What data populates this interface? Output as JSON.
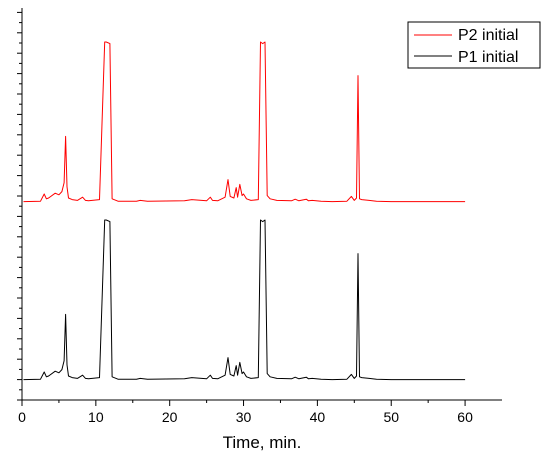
{
  "chart_data": {
    "type": "line",
    "xlabel": "Time, min.",
    "ylabel": "",
    "xlim": [
      0,
      65
    ],
    "x_ticks": [
      0,
      10,
      20,
      30,
      40,
      50,
      60
    ],
    "x_tick_labels": [
      "0",
      "10",
      "20",
      "30",
      "40",
      "50",
      "60"
    ],
    "y_tick_labels_shown": false,
    "grid": false,
    "legend_position": "top-right",
    "legend": [
      "P2 initial",
      "P1 initial"
    ],
    "series": [
      {
        "name": "P2 initial",
        "color": "#ff0000",
        "x": [
          0.2,
          2.5,
          3.0,
          3.3,
          3.6,
          4.5,
          5.0,
          5.4,
          5.7,
          5.9,
          6.1,
          6.3,
          6.8,
          7.5,
          8.2,
          8.6,
          9.0,
          10.5,
          11.2,
          11.4,
          11.9,
          12.2,
          13.0,
          15.5,
          16.0,
          17.0,
          22.0,
          23.0,
          25.0,
          25.5,
          25.8,
          26.5,
          27.5,
          27.9,
          28.2,
          28.7,
          29.0,
          29.2,
          29.5,
          29.8,
          30.0,
          30.4,
          31.0,
          32.0,
          32.3,
          32.6,
          32.9,
          33.2,
          33.6,
          34.5,
          36.5,
          37.0,
          37.5,
          38.5,
          38.8,
          39.3,
          40.5,
          42.0,
          44.0,
          44.6,
          45.0,
          45.3,
          45.5,
          45.7,
          46.0,
          47.0,
          48.0,
          50.0,
          55.0,
          60.0
        ],
        "y": [
          0.5,
          1.0,
          10.0,
          4.0,
          5.0,
          11.0,
          9.0,
          13.0,
          24.0,
          82.0,
          19.0,
          5.0,
          3.0,
          2.0,
          6.0,
          2.0,
          1.5,
          3.0,
          200.0,
          200.0,
          198.0,
          4.0,
          1.0,
          1.0,
          2.0,
          1.0,
          1.5,
          3.0,
          1.5,
          6.0,
          2.0,
          1.5,
          6.0,
          28.0,
          7.0,
          5.0,
          18.0,
          6.0,
          22.0,
          8.0,
          10.0,
          4.0,
          2.0,
          3.0,
          200.0,
          198.0,
          200.0,
          8.0,
          4.0,
          2.0,
          1.5,
          3.5,
          1.5,
          3.5,
          1.5,
          2.0,
          1.0,
          0.5,
          1.0,
          7.0,
          2.0,
          5.0,
          158.0,
          4.0,
          3.0,
          2.0,
          1.0,
          0.5,
          0.5,
          0.5
        ]
      },
      {
        "name": "P1 initial",
        "color": "#000000",
        "x": [
          0.2,
          2.5,
          3.0,
          3.3,
          3.6,
          4.5,
          5.0,
          5.4,
          5.7,
          5.9,
          6.1,
          6.3,
          6.8,
          7.5,
          8.2,
          8.6,
          9.0,
          10.5,
          11.2,
          11.4,
          11.9,
          12.2,
          13.0,
          15.5,
          16.0,
          17.0,
          22.0,
          23.0,
          25.0,
          25.5,
          25.8,
          26.5,
          27.5,
          27.9,
          28.2,
          28.7,
          29.0,
          29.2,
          29.5,
          29.8,
          30.0,
          30.4,
          31.0,
          32.0,
          32.3,
          32.6,
          32.9,
          33.2,
          33.6,
          34.5,
          36.5,
          37.0,
          37.5,
          38.5,
          38.8,
          39.3,
          40.5,
          42.0,
          44.0,
          44.6,
          45.0,
          45.3,
          45.5,
          45.7,
          46.0,
          47.0,
          48.0,
          50.0,
          55.0,
          60.0
        ],
        "y": [
          0.5,
          1.0,
          10.0,
          4.0,
          5.0,
          11.0,
          9.0,
          13.0,
          24.0,
          82.0,
          19.0,
          5.0,
          3.0,
          2.0,
          6.0,
          2.0,
          1.5,
          3.0,
          200.0,
          200.0,
          198.0,
          4.0,
          1.0,
          1.0,
          2.0,
          1.0,
          1.5,
          3.0,
          1.5,
          6.0,
          2.0,
          1.5,
          6.0,
          28.0,
          7.0,
          5.0,
          18.0,
          6.0,
          22.0,
          8.0,
          10.0,
          4.0,
          2.0,
          3.0,
          200.0,
          198.0,
          200.0,
          8.0,
          4.0,
          2.0,
          1.5,
          3.5,
          1.5,
          3.5,
          1.5,
          2.0,
          1.0,
          0.5,
          1.0,
          7.0,
          2.0,
          5.0,
          158.0,
          4.0,
          3.0,
          2.0,
          1.0,
          0.5,
          0.5,
          0.5
        ]
      }
    ]
  }
}
